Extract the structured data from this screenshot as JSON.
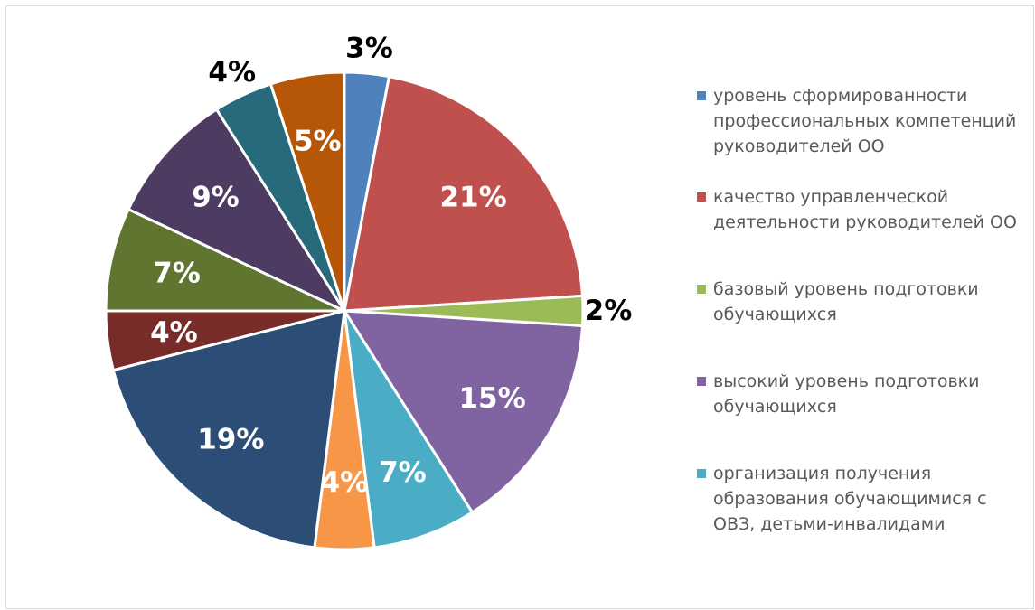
{
  "chart_data": {
    "type": "pie",
    "title": "",
    "legend_position": "right",
    "slices": [
      {
        "label": "уровень сформированности профессиональных компетенций руководителей ОО",
        "value": 3,
        "display": "3%",
        "color": "#4F81BD",
        "label_color": "#000000",
        "label_outside": true
      },
      {
        "label": "качество управленческой деятельности руководителей ОО",
        "value": 21,
        "display": "21%",
        "color": "#C0504D",
        "label_color": "#ffffff",
        "label_outside": false
      },
      {
        "label": "базовый уровень подготовки обучающихся",
        "value": 2,
        "display": "2%",
        "color": "#9BBB59",
        "label_color": "#000000",
        "label_outside": true
      },
      {
        "label": "высокий уровень подготовки обучающихся",
        "value": 15,
        "display": "15%",
        "color": "#8064A2",
        "label_color": "#ffffff",
        "label_outside": false
      },
      {
        "label": "организация получения образования обучающимися с ОВЗ, детьми-инвалидами",
        "value": 7,
        "display": "7%",
        "color": "#4BACC6",
        "label_color": "#ffffff",
        "label_outside": false
      },
      {
        "label": "",
        "value": 4,
        "display": "4%",
        "color": "#F79646",
        "label_color": "#ffffff",
        "label_outside": false
      },
      {
        "label": "",
        "value": 19,
        "display": "19%",
        "color": "#2C4D75",
        "label_color": "#ffffff",
        "label_outside": false
      },
      {
        "label": "",
        "value": 4,
        "display": "4%",
        "color": "#772C2A",
        "label_color": "#ffffff",
        "label_outside": false
      },
      {
        "label": "",
        "value": 7,
        "display": "7%",
        "color": "#5F7530",
        "label_color": "#ffffff",
        "label_outside": false
      },
      {
        "label": "",
        "value": 9,
        "display": "9%",
        "color": "#4D3B62",
        "label_color": "#ffffff",
        "label_outside": false
      },
      {
        "label": "",
        "value": 4,
        "display": "4%",
        "color": "#276A7C",
        "label_color": "#000000",
        "label_outside": true
      },
      {
        "label": "",
        "value": 5,
        "display": "5%",
        "color": "#B65708",
        "label_color": "#ffffff",
        "label_outside": false
      }
    ],
    "legend": [
      {
        "text": "уровень сформированности профессиональных компетенций руководителей ОО",
        "color": "#4F81BD"
      },
      {
        "text": "качество управленческой деятельности руководителей ОО",
        "color": "#C0504D"
      },
      {
        "text": "базовый уровень подготовки обучающихся",
        "color": "#9BBB59"
      },
      {
        "text": "высокий уровень подготовки обучающихся",
        "color": "#8064A2"
      },
      {
        "text": "организация получения образования обучающимися с ОВЗ, детьми-инвалидами",
        "color": "#4BACC6"
      }
    ]
  }
}
